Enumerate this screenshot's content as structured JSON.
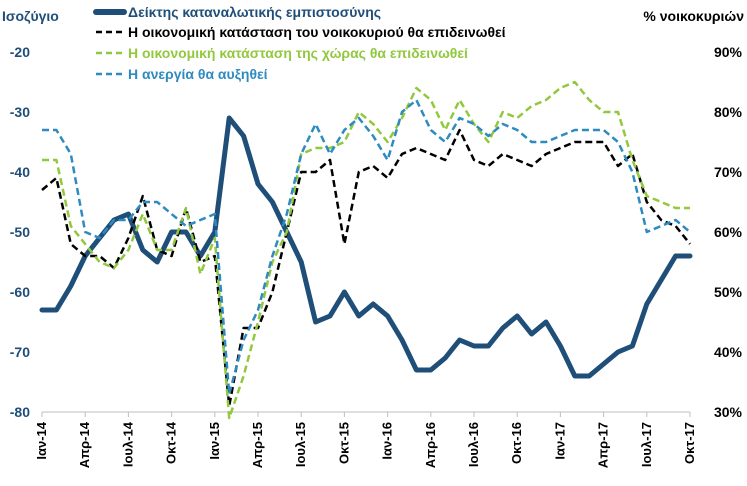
{
  "chart_data": {
    "type": "line",
    "left_axis_title": "Ισοζύγιο",
    "right_axis_title": "% νοικοκυριών",
    "ylim_left": [
      -80,
      -20
    ],
    "ylim_right": [
      30,
      90
    ],
    "left_ticks": [
      "-20",
      "-30",
      "-40",
      "-50",
      "-60",
      "-70",
      "-80"
    ],
    "right_ticks": [
      "90%",
      "80%",
      "70%",
      "60%",
      "50%",
      "40%",
      "30%"
    ],
    "x_tick_labels": [
      "Ιαν-14",
      "Απρ-14",
      "Ιουλ-14",
      "Οκτ-14",
      "Ιαν-15",
      "Απρ-15",
      "Ιουλ-15",
      "Οκτ-15",
      "Ιαν-16",
      "Απρ-16",
      "Ιουλ-16",
      "Οκτ-16",
      "Ιαν-17",
      "Απρ-17",
      "Ιουλ-17",
      "Οκτ-17"
    ],
    "months_count": 46,
    "series": [
      {
        "name": "Δείκτης καταναλωτικής εμπιστοσύνης",
        "axis": "left",
        "style": "solid",
        "color": "#1f4e79",
        "values": [
          -63,
          -63,
          -59,
          -54,
          -51,
          -48,
          -47,
          -53,
          -55,
          -50,
          -50,
          -54,
          -50,
          -31,
          -34,
          -42,
          -45,
          -50,
          -55,
          -65,
          -64,
          -60,
          -64,
          -62,
          -64,
          -68,
          -73,
          -73,
          -71,
          -68,
          -69,
          -69,
          -66,
          -64,
          -67,
          -65,
          -69,
          -74,
          -74,
          -72,
          -70,
          -69,
          -62,
          -58,
          -54,
          -54
        ]
      },
      {
        "name": "Η οικονομική κατάσταση του νοικοκυριού θα επιδεινωθεί",
        "axis": "right",
        "style": "dashed",
        "color": "#000000",
        "values": [
          67,
          69,
          58,
          56,
          56,
          54,
          59,
          66,
          57,
          56,
          64,
          55,
          56,
          31,
          44,
          44,
          50,
          60,
          70,
          70,
          72,
          58,
          70,
          71,
          69,
          73,
          74,
          73,
          72,
          77,
          72,
          71,
          73,
          72,
          71,
          73,
          74,
          75,
          75,
          75,
          71,
          73,
          65,
          62,
          61,
          58
        ]
      },
      {
        "name": "Η οικονομική κατάσταση της χώρας θα επιδεινωθεί",
        "axis": "right",
        "style": "dashed",
        "color": "#92c83e",
        "values": [
          72,
          72,
          61,
          58,
          55,
          54,
          57,
          63,
          57,
          57,
          64,
          53,
          59,
          29,
          36,
          45,
          55,
          60,
          73,
          74,
          74,
          75,
          80,
          78,
          75,
          79,
          84,
          82,
          77,
          82,
          78,
          75,
          80,
          79,
          81,
          82,
          84,
          85,
          82,
          80,
          80,
          72,
          66,
          65,
          64,
          64
        ]
      },
      {
        "name": "Η ανεργία θα αυξηθεί",
        "axis": "right",
        "style": "dashed",
        "color": "#2e8bc0",
        "values": [
          77,
          77,
          73,
          60,
          59,
          62,
          62,
          65,
          65,
          63,
          61,
          62,
          63,
          33,
          42,
          47,
          56,
          63,
          73,
          78,
          73,
          77,
          79,
          76,
          72,
          80,
          82,
          77,
          75,
          79,
          78,
          76,
          78,
          77,
          75,
          75,
          76,
          77,
          77,
          77,
          75,
          70,
          60,
          61,
          62,
          60
        ]
      }
    ]
  }
}
